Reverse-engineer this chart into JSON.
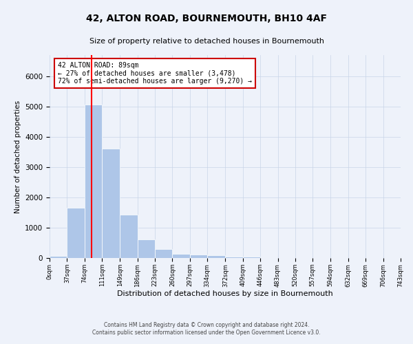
{
  "title": "42, ALTON ROAD, BOURNEMOUTH, BH10 4AF",
  "subtitle": "Size of property relative to detached houses in Bournemouth",
  "xlabel": "Distribution of detached houses by size in Bournemouth",
  "ylabel": "Number of detached properties",
  "footer_line1": "Contains HM Land Registry data © Crown copyright and database right 2024.",
  "footer_line2": "Contains public sector information licensed under the Open Government Licence v3.0.",
  "bar_edges": [
    0,
    37,
    74,
    111,
    149,
    186,
    223,
    260,
    297,
    334,
    372,
    409,
    446,
    483,
    520,
    557,
    594,
    632,
    669,
    706,
    743
  ],
  "bar_values": [
    75,
    1650,
    5060,
    3600,
    1420,
    620,
    290,
    130,
    110,
    80,
    55,
    55,
    0,
    0,
    0,
    0,
    0,
    0,
    0,
    0
  ],
  "bar_color": "#aec6e8",
  "bar_edge_color": "white",
  "property_line_x": 89,
  "red_line_color": "#ff0000",
  "annotation_text": "42 ALTON ROAD: 89sqm\n← 27% of detached houses are smaller (3,478)\n72% of semi-detached houses are larger (9,270) →",
  "annotation_box_color": "#ffffff",
  "annotation_box_edge": "#cc0000",
  "ylim": [
    0,
    6700
  ],
  "grid_color": "#c8d4e8",
  "background_color": "#eef2fa"
}
